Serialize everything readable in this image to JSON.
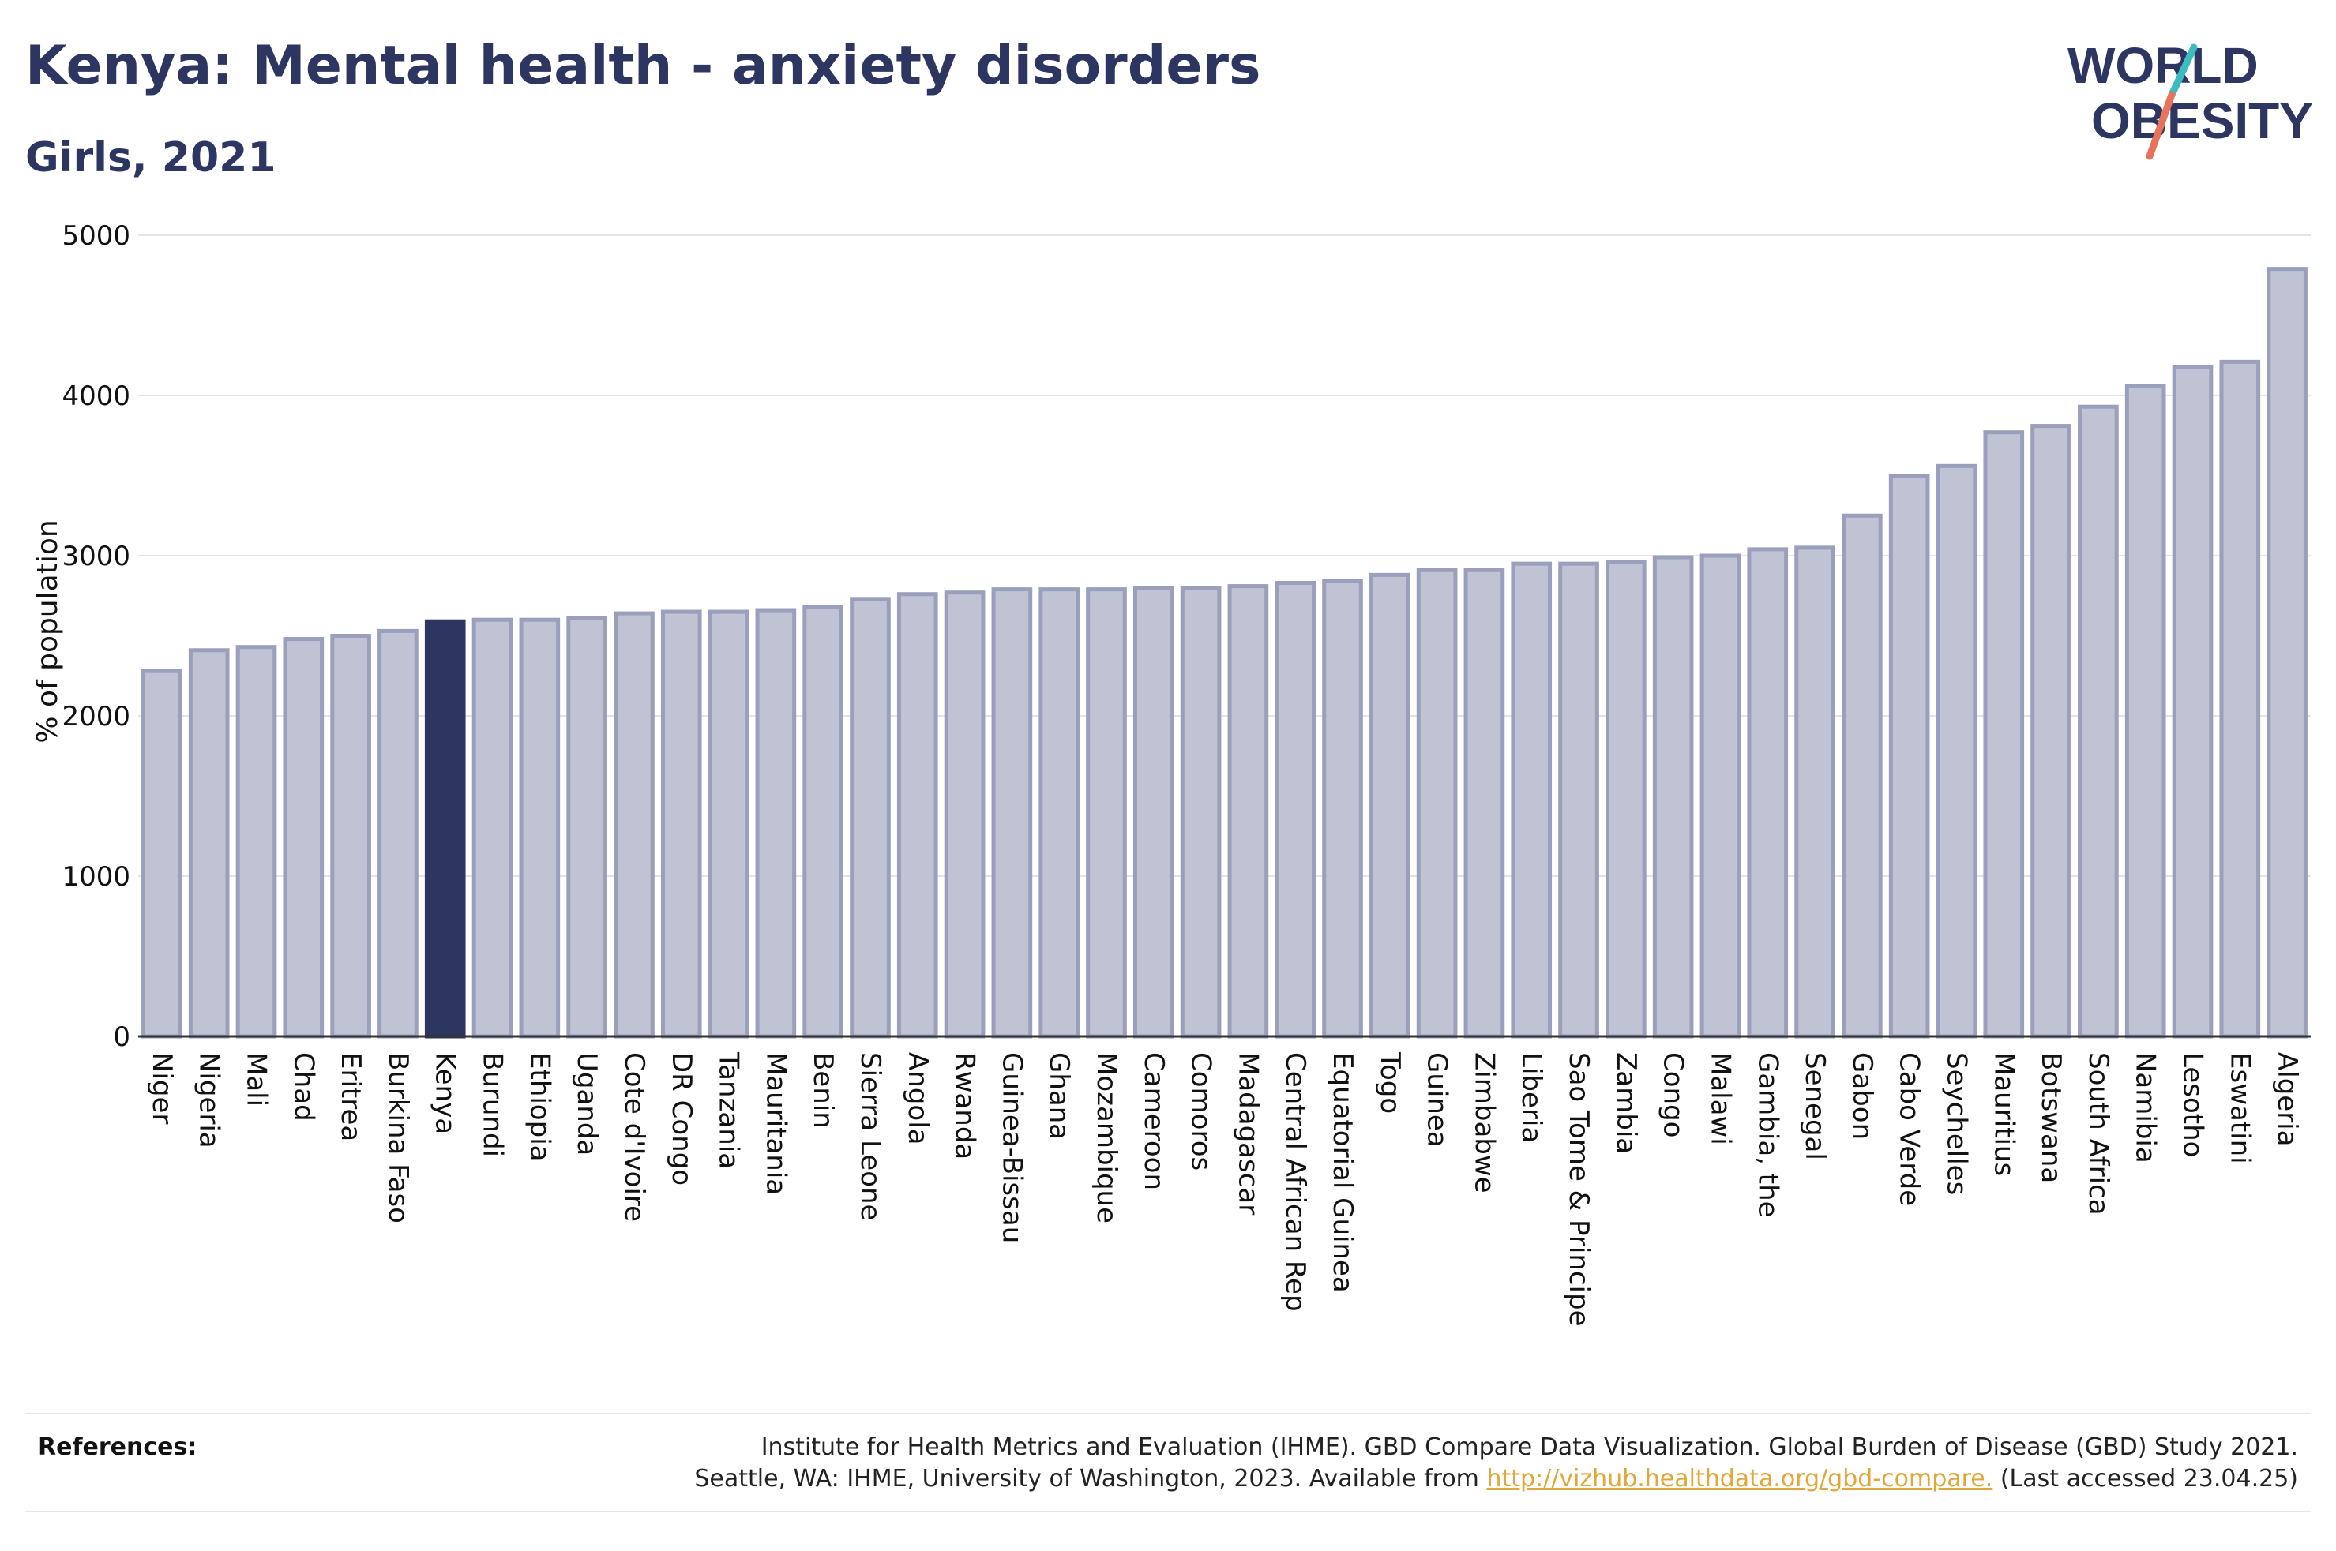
{
  "header": {
    "title": "Kenya: Mental health - anxiety disorders",
    "subtitle": "Girls, 2021"
  },
  "logo": {
    "line1": "WORLD",
    "line2": "OBESITY",
    "colors": {
      "text": "#2d3561",
      "slash_top": "#3dbcc0",
      "slash_bottom": "#e8735a"
    }
  },
  "chart_data": {
    "type": "bar",
    "ylabel": "% of population",
    "ylim": [
      0,
      5000
    ],
    "yticks": [
      0,
      1000,
      2000,
      3000,
      4000,
      5000
    ],
    "grid": true,
    "highlight": "Kenya",
    "colors": {
      "bar": "#bfc3d3",
      "bar_edge": "#9a9fbb",
      "highlight": "#2d3561"
    },
    "categories": [
      "Niger",
      "Nigeria",
      "Mali",
      "Chad",
      "Eritrea",
      "Burkina Faso",
      "Kenya",
      "Burundi",
      "Ethiopia",
      "Uganda",
      "Cote d'Ivoire",
      "DR Congo",
      "Tanzania",
      "Mauritania",
      "Benin",
      "Sierra Leone",
      "Angola",
      "Rwanda",
      "Guinea-Bissau",
      "Ghana",
      "Mozambique",
      "Cameroon",
      "Comoros",
      "Madagascar",
      "Central African Rep",
      "Equatorial Guinea",
      "Togo",
      "Guinea",
      "Zimbabwe",
      "Liberia",
      "Sao Tome & Principe",
      "Zambia",
      "Congo",
      "Malawi",
      "Gambia, the",
      "Senegal",
      "Gabon",
      "Cabo Verde",
      "Seychelles",
      "Mauritius",
      "Botswana",
      "South Africa",
      "Namibia",
      "Lesotho",
      "Eswatini",
      "Algeria"
    ],
    "values": [
      2280,
      2410,
      2430,
      2480,
      2500,
      2530,
      2590,
      2600,
      2600,
      2610,
      2640,
      2650,
      2650,
      2660,
      2680,
      2730,
      2760,
      2770,
      2790,
      2790,
      2790,
      2800,
      2800,
      2810,
      2830,
      2840,
      2880,
      2910,
      2910,
      2950,
      2950,
      2960,
      2990,
      3000,
      3040,
      3050,
      3250,
      3500,
      3560,
      3770,
      3810,
      3930,
      4060,
      4180,
      4210,
      4790
    ]
  },
  "references": {
    "label": "References:",
    "line1": "Institute for Health Metrics and Evaluation (IHME). GBD Compare Data Visualization. Global Burden of Disease (GBD) Study 2021.",
    "line2_prefix": "Seattle, WA: IHME, University of Washington, 2023. Available from ",
    "link": "http://vizhub.healthdata.org/gbd-compare.",
    "line2_suffix": " (Last accessed 23.04.25)"
  }
}
